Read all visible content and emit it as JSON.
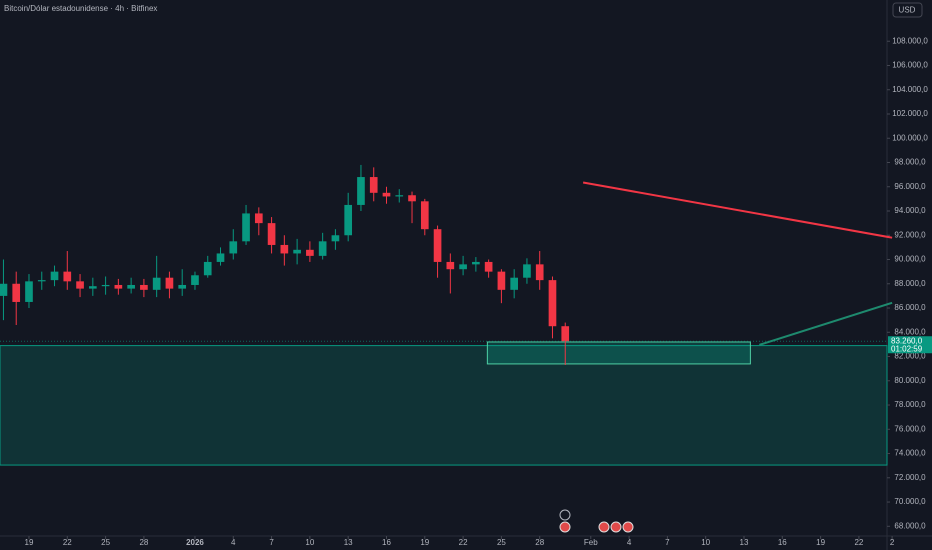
{
  "chart_data": {
    "type": "candlestick",
    "title": "Bitcoin/Dólar estadounidense · 4h · Bitfinex",
    "currency": "USD",
    "x": [
      -2,
      -1,
      0,
      1,
      2,
      3,
      4,
      5,
      6,
      7,
      8,
      9,
      10,
      11,
      12,
      13,
      14,
      15,
      16,
      17,
      18,
      19,
      20,
      21,
      22,
      23,
      24,
      25,
      26,
      27,
      28,
      29,
      30,
      31,
      32,
      33,
      34,
      35,
      36,
      37,
      38,
      39,
      40,
      41,
      42
    ],
    "open": [
      87000,
      88000,
      86500,
      88200,
      88300,
      89000,
      88200,
      87600,
      87800,
      87900,
      87600,
      87900,
      87500,
      88500,
      87600,
      87900,
      88700,
      89800,
      90500,
      91500,
      93800,
      93000,
      91200,
      90500,
      90800,
      90300,
      91500,
      92000,
      94500,
      96800,
      95500,
      95200,
      95300,
      94800,
      92500,
      89800,
      89200,
      89600,
      89800,
      89000,
      87500,
      88500,
      89600,
      88300,
      84500
    ],
    "high": [
      90000,
      89000,
      88800,
      89000,
      89500,
      90700,
      88800,
      88500,
      88600,
      88400,
      88500,
      88400,
      90300,
      89000,
      89200,
      89000,
      90300,
      91000,
      92500,
      94500,
      94300,
      93500,
      92000,
      91700,
      91500,
      92200,
      92500,
      95500,
      97800,
      97600,
      96000,
      95800,
      95600,
      95000,
      92800,
      90500,
      90300,
      90200,
      90000,
      89200,
      89200,
      90100,
      90700,
      88600,
      84800
    ],
    "low": [
      85000,
      84600,
      86000,
      87500,
      87800,
      87500,
      86900,
      87000,
      87100,
      87100,
      87200,
      86900,
      86900,
      86800,
      87000,
      87500,
      88500,
      89500,
      90000,
      91200,
      92000,
      90500,
      89500,
      89600,
      89800,
      90000,
      90800,
      91500,
      94000,
      94800,
      94600,
      94700,
      93000,
      92000,
      88500,
      87200,
      88700,
      89000,
      88500,
      86400,
      86800,
      88000,
      87500,
      83500,
      81300
    ],
    "close": [
      88000,
      86500,
      88200,
      88300,
      89000,
      88200,
      87600,
      87800,
      87900,
      87600,
      87900,
      87500,
      88500,
      87600,
      87900,
      88700,
      89800,
      90500,
      91500,
      93800,
      93000,
      91200,
      90500,
      90800,
      90300,
      91500,
      92000,
      94500,
      96800,
      95500,
      95200,
      95300,
      94800,
      92500,
      89800,
      89200,
      89600,
      89800,
      89000,
      87500,
      88500,
      89600,
      88300,
      84500,
      83260
    ],
    "up_color": "#089981",
    "down_color": "#f23645",
    "xlim": [
      -2.27,
      67.2
    ],
    "xticks": [
      {
        "value": 0,
        "label": "19"
      },
      {
        "value": 3,
        "label": "22"
      },
      {
        "value": 6,
        "label": "25"
      },
      {
        "value": 9,
        "label": "28"
      },
      {
        "value": 13,
        "label": "2026"
      },
      {
        "value": 16,
        "label": "4"
      },
      {
        "value": 19,
        "label": "7"
      },
      {
        "value": 22,
        "label": "10"
      },
      {
        "value": 25,
        "label": "13"
      },
      {
        "value": 28,
        "label": "16"
      },
      {
        "value": 31,
        "label": "19"
      },
      {
        "value": 34,
        "label": "22"
      },
      {
        "value": 37,
        "label": "25"
      },
      {
        "value": 40,
        "label": "28"
      },
      {
        "value": 44,
        "label": "Feb"
      },
      {
        "value": 47,
        "label": "4"
      },
      {
        "value": 50,
        "label": "7"
      },
      {
        "value": 53,
        "label": "10"
      },
      {
        "value": 56,
        "label": "13"
      },
      {
        "value": 59,
        "label": "16"
      },
      {
        "value": 62,
        "label": "19"
      },
      {
        "value": 65,
        "label": "22"
      },
      {
        "value": 67.6,
        "label": "2"
      }
    ],
    "ylim": [
      67200,
      111400
    ],
    "yticks": [
      {
        "value": 68000,
        "label": "68.000,0"
      },
      {
        "value": 70000,
        "label": "70.000,0"
      },
      {
        "value": 72000,
        "label": "72.000,0"
      },
      {
        "value": 74000,
        "label": "74.000,0"
      },
      {
        "value": 76000,
        "label": "76.000,0"
      },
      {
        "value": 78000,
        "label": "78.000,0"
      },
      {
        "value": 80000,
        "label": "80.000,0"
      },
      {
        "value": 82000,
        "label": "82.000,0"
      },
      {
        "value": 84000,
        "label": "84.000,0"
      },
      {
        "value": 86000,
        "label": "86.000,0"
      },
      {
        "value": 88000,
        "label": "88.000,0"
      },
      {
        "value": 90000,
        "label": "90.000,0"
      },
      {
        "value": 92000,
        "label": "92.000,0"
      },
      {
        "value": 94000,
        "label": "94.000,0"
      },
      {
        "value": 96000,
        "label": "96.000,0"
      },
      {
        "value": 98000,
        "label": "98.000,0"
      },
      {
        "value": 100000,
        "label": "100.000,0"
      },
      {
        "value": 102000,
        "label": "102.000,0"
      },
      {
        "value": 104000,
        "label": "104.000,0"
      },
      {
        "value": 106000,
        "label": "106.000,0"
      },
      {
        "value": 108000,
        "label": "108.000,0"
      }
    ],
    "last_price": {
      "value": 83260,
      "label": "83.260,0",
      "countdown": "01:02:59"
    },
    "zone": {
      "top": 82900,
      "bottom": 73050,
      "color": "#089981"
    },
    "box": {
      "top": 83200,
      "bottom": 81390,
      "x0": 35.9,
      "x1": 56.5,
      "color": "#089981"
    },
    "lines": [
      {
        "x": [
          43.4,
          67.6
        ],
        "y": [
          96350,
          91800
        ],
        "color": "#f23645"
      },
      {
        "x": [
          57.2,
          67.6
        ],
        "y": [
          82960,
          86430
        ],
        "color": "#1e8a6e"
      }
    ]
  }
}
